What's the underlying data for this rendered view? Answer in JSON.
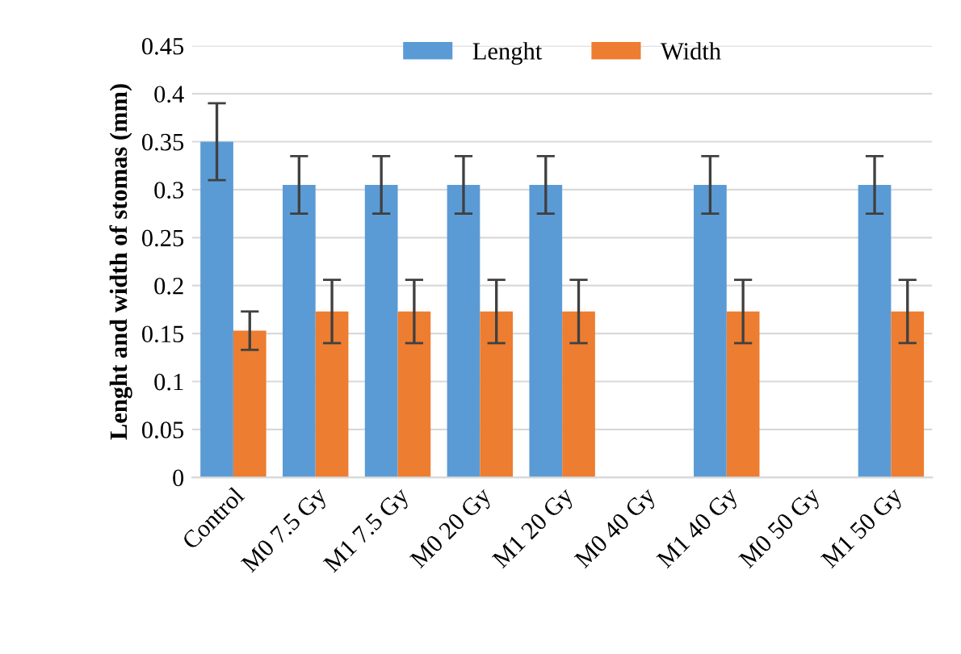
{
  "chart_data": {
    "type": "bar",
    "ylabel": "Lenght and width of stomas (mm)",
    "categories": [
      "Control",
      "M0 7.5 Gy",
      "M1 7.5 Gy",
      "M0 20 Gy",
      "M1 20 Gy",
      "M0 40 Gy",
      "M1 40 Gy",
      "M0 50 Gy",
      "M1 50 Gy"
    ],
    "series": [
      {
        "name": "Lenght",
        "color": "#5b9bd5",
        "values": [
          0.35,
          0.305,
          0.305,
          0.305,
          0.305,
          null,
          0.305,
          null,
          0.305
        ],
        "errors": [
          0.04,
          0.03,
          0.03,
          0.03,
          0.03,
          null,
          0.03,
          null,
          0.03
        ]
      },
      {
        "name": "Width",
        "color": "#ed7d31",
        "values": [
          0.153,
          0.173,
          0.173,
          0.173,
          0.173,
          null,
          0.173,
          null,
          0.173
        ],
        "errors": [
          0.02,
          0.033,
          0.033,
          0.033,
          0.033,
          null,
          0.033,
          null,
          0.033
        ]
      }
    ],
    "ylim": [
      0,
      0.45
    ],
    "yticks": [
      0,
      0.05,
      0.1,
      0.15,
      0.2,
      0.25,
      0.3,
      0.35,
      0.4,
      0.45
    ],
    "grid": "y",
    "legend": "top"
  }
}
